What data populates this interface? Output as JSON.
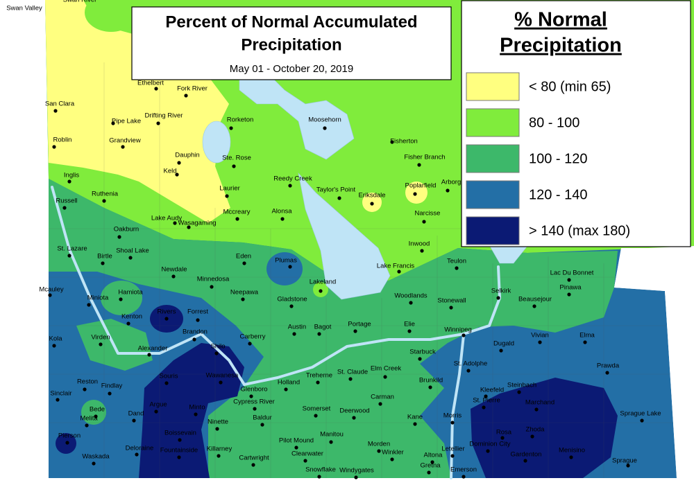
{
  "title": {
    "lines": [
      "Percent of Normal Accumulated",
      "Precipitation"
    ],
    "subtitle": "May 01 - October 20, 2019"
  },
  "legend": {
    "title_lines": [
      "% Normal",
      "Precipitation"
    ],
    "items": [
      {
        "label": "< 80 (min 65)",
        "color": "#ffff80"
      },
      {
        "label": "80 - 100",
        "color": "#80ec3c"
      },
      {
        "label": "100 - 120",
        "color": "#3db86a"
      },
      {
        "label": "120 - 140",
        "color": "#236fa6"
      },
      {
        "label": "> 140 (max 180)",
        "color": "#0b1a74"
      }
    ]
  },
  "places": [
    "Swan Valley",
    "Swan River",
    "Ethelbert",
    "Fork River",
    "San Clara",
    "Pipe Lake",
    "Drifting River",
    "Rorketon",
    "Moosehorn",
    "Fisherton",
    "Roblin",
    "Grandview",
    "Dauphin",
    "Ste. Rose",
    "Fisher Branch",
    "Keld",
    "Inglis",
    "Reedy Creek",
    "Taylor's Point",
    "Poplarfield",
    "Arborg",
    "Laurier",
    "Ruthenia",
    "Eriksdale",
    "Russell",
    "Lake Audy",
    "Alonsa",
    "Mccreary",
    "Narcisse",
    "Wasagaming",
    "Oakburn",
    "Inwood",
    "St. Lazare",
    "Shoal Lake",
    "Birtle",
    "Eden",
    "Plumas",
    "Teulon",
    "Lake Francis",
    "Newdale",
    "Lac Du Bonnet",
    "Minnedosa",
    "Mcauley",
    "Neepawa",
    "Hamiota",
    "Selkirk",
    "Pinawa",
    "Lakeland",
    "Miniota",
    "Woodlands",
    "Gladstone",
    "Stonewall",
    "Beausejour",
    "Rivers",
    "Forrest",
    "Kenton",
    "Austin",
    "Bagot",
    "Portage",
    "Elie",
    "Winnipeg",
    "Carberry",
    "Brandon",
    "Vivian",
    "Elma",
    "Kola",
    "Virden",
    "Dugald",
    "Alexander",
    "Shilo",
    "Starbuck",
    "St. Adolphe",
    "Prawda",
    "Treherne",
    "St. Claude",
    "Elm Creek",
    "Wawanesa",
    "Souris",
    "Brunkild",
    "Steinbach",
    "Holland",
    "Reston",
    "Kleefeld",
    "Findlay",
    "Glenboro",
    "Sinclair",
    "Carman",
    "St. Pierre",
    "Marchand",
    "Cypress River",
    "Argue",
    "Minto",
    "Bede",
    "Somerset",
    "Deerwood",
    "Dand",
    "Melita",
    "Sprague Lake",
    "Morris",
    "Kane",
    "Baldur",
    "Ninette",
    "Rosa",
    "Zhoda",
    "Boissevain",
    "Manitou",
    "Pierson",
    "Pilot Mound",
    "Dominion City",
    "Deloraine",
    "Morden",
    "Killarney",
    "Fountainside",
    "Winkler",
    "Letellier",
    "Menisino",
    "Gardenton",
    "Waskada",
    "Altona",
    "Clearwater",
    "Cartwright",
    "Sprague",
    "Gretna",
    "Snowflake",
    "Emerson",
    "Windygates"
  ]
}
